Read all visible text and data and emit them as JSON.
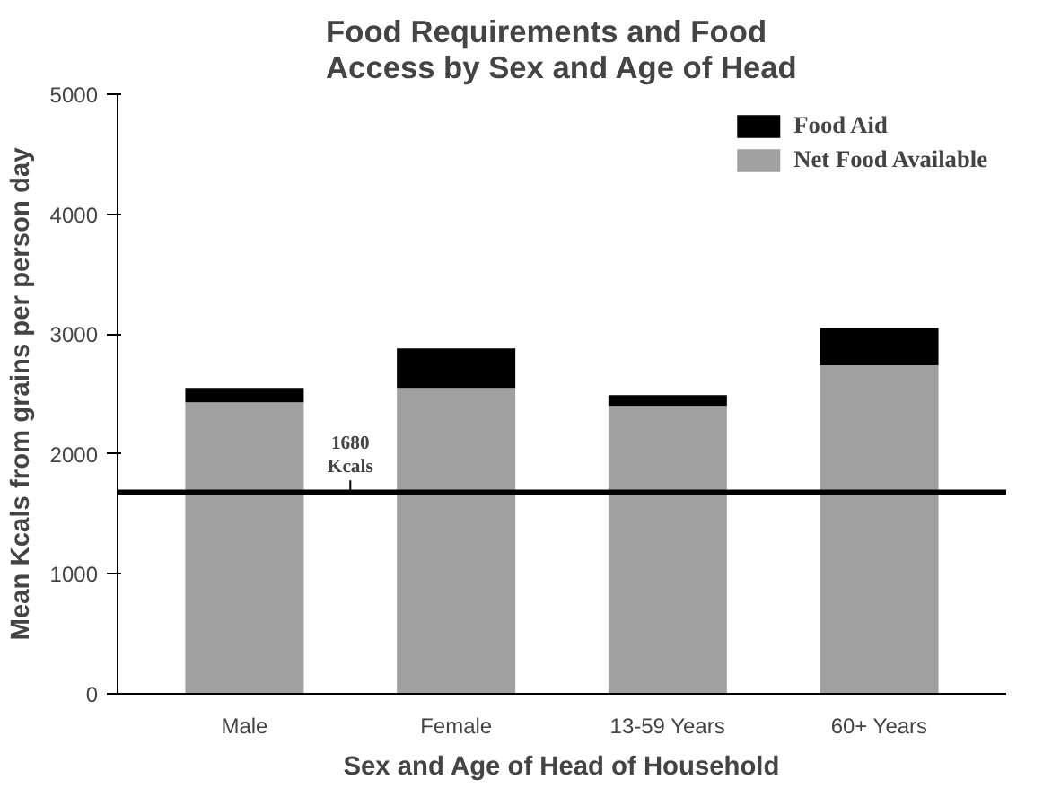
{
  "chart_data": {
    "type": "bar",
    "title": "Food Requirements and Food\nAccess by Sex and Age of Head",
    "xlabel": "Sex and Age of Head of Household",
    "ylabel": "Mean Kcals from grains per person day",
    "categories": [
      "Male",
      "Female",
      "13-59 Years",
      "60+ Years"
    ],
    "stacked": true,
    "series": [
      {
        "name": "Net Food Available",
        "color": "#a0a0a0",
        "values": [
          2430,
          2550,
          2400,
          2740
        ]
      },
      {
        "name": "Food Aid",
        "color": "#000000",
        "values": [
          120,
          330,
          90,
          310
        ]
      }
    ],
    "ylim": [
      0,
      5000
    ],
    "yticks": [
      0,
      1000,
      2000,
      3000,
      4000,
      5000
    ],
    "ref_lines": [
      {
        "axis": "y",
        "value": 1680,
        "label": "1680\nKcals",
        "color": "#000000"
      }
    ],
    "grid": false,
    "legend": "top right"
  }
}
